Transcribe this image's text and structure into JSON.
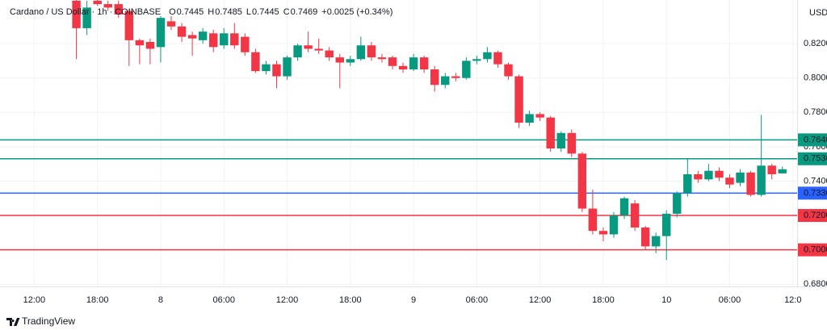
{
  "chart_data": {
    "type": "candlestick",
    "title": "Cardano / US Dollar · 1h · COINBASE",
    "ohlc_legend": [
      {
        "label": "O",
        "value": 0.7445
      },
      {
        "label": "H",
        "value": 0.7485
      },
      {
        "label": "L",
        "value": 0.7445
      },
      {
        "label": "C",
        "value": 0.7469
      }
    ],
    "change": "+0.0025 (+0.34%)",
    "currency": "USD",
    "brand": "TradingView",
    "up_color": "#089981",
    "down_color": "#f23645",
    "xlim": [
      -3.25,
      72.4
    ],
    "xticks": [
      {
        "value": 0,
        "label": "12:00"
      },
      {
        "value": 6,
        "label": "18:00"
      },
      {
        "value": 12,
        "label": "8"
      },
      {
        "value": 18,
        "label": "06:00"
      },
      {
        "value": 24,
        "label": "12:00"
      },
      {
        "value": 30,
        "label": "18:00"
      },
      {
        "value": 36,
        "label": "9"
      },
      {
        "value": 42,
        "label": "06:00"
      },
      {
        "value": 48,
        "label": "12:00"
      },
      {
        "value": 54,
        "label": "18:00"
      },
      {
        "value": 60,
        "label": "10"
      },
      {
        "value": 66,
        "label": "06:00"
      },
      {
        "value": 72,
        "label": "12:0"
      }
    ],
    "ylim": [
      0.6787,
      0.8454
    ],
    "yticks": [
      {
        "value": 0.82,
        "label": "0.8200"
      },
      {
        "value": 0.8,
        "label": "0.8000"
      },
      {
        "value": 0.78,
        "label": "0.7800"
      },
      {
        "value": 0.76,
        "label": "0.7600"
      },
      {
        "value": 0.74,
        "label": "0.7400"
      },
      {
        "value": 0.68,
        "label": "0.6800"
      }
    ],
    "levels": [
      {
        "value": 0.764,
        "label": "0.7640",
        "color": "#089981"
      },
      {
        "value": 0.753,
        "label": "0.7530",
        "color": "#089981"
      },
      {
        "value": 0.733,
        "label": "0.7330",
        "color": "#2962ff"
      },
      {
        "value": 0.72,
        "label": "0.7200",
        "color": "#f23645"
      },
      {
        "value": 0.7,
        "label": "0.7000",
        "color": "#f23645"
      }
    ],
    "x": [
      4,
      5,
      6,
      7,
      8,
      9,
      10,
      11,
      12,
      13,
      14,
      15,
      16,
      17,
      18,
      19,
      20,
      21,
      22,
      23,
      24,
      25,
      26,
      27,
      28,
      29,
      30,
      31,
      32,
      33,
      34,
      35,
      36,
      37,
      38,
      39,
      40,
      41,
      42,
      43,
      44,
      45,
      46,
      47,
      48,
      49,
      50,
      51,
      52,
      53,
      54,
      55,
      56,
      57,
      58,
      59,
      60,
      61,
      62,
      63,
      64,
      65,
      66,
      67,
      68,
      69,
      70,
      71
    ],
    "open": [
      0.845,
      0.829,
      0.845,
      0.843,
      0.843,
      0.839,
      0.822,
      0.821,
      0.818,
      0.833,
      0.83,
      0.825,
      0.822,
      0.826,
      0.819,
      0.826,
      0.824,
      0.815,
      0.804,
      0.808,
      0.801,
      0.812,
      0.819,
      0.817,
      0.816,
      0.812,
      0.809,
      0.811,
      0.819,
      0.812,
      0.812,
      0.807,
      0.805,
      0.812,
      0.805,
      0.796,
      0.801,
      0.8,
      0.81,
      0.811,
      0.815,
      0.808,
      0.801,
      0.774,
      0.779,
      0.777,
      0.759,
      0.768,
      0.756,
      0.724,
      0.711,
      0.709,
      0.72,
      0.727,
      0.713,
      0.702,
      0.708,
      0.721,
      0.733,
      0.744,
      0.741,
      0.746,
      0.742,
      0.739,
      0.745,
      0.732,
      0.749,
      0.7445
    ],
    "high": [
      0.848,
      0.845,
      0.848,
      0.845,
      0.845,
      0.84,
      0.823,
      0.823,
      0.836,
      0.836,
      0.832,
      0.827,
      0.829,
      0.828,
      0.829,
      0.832,
      0.826,
      0.817,
      0.81,
      0.81,
      0.813,
      0.82,
      0.827,
      0.823,
      0.818,
      0.814,
      0.813,
      0.824,
      0.821,
      0.814,
      0.813,
      0.809,
      0.814,
      0.813,
      0.807,
      0.803,
      0.803,
      0.812,
      0.813,
      0.818,
      0.816,
      0.809,
      0.802,
      0.781,
      0.78,
      0.778,
      0.769,
      0.77,
      0.757,
      0.735,
      0.713,
      0.722,
      0.731,
      0.729,
      0.714,
      0.71,
      0.723,
      0.734,
      0.753,
      0.746,
      0.75,
      0.748,
      0.744,
      0.747,
      0.746,
      0.7785,
      0.75,
      0.7485
    ],
    "low": [
      0.811,
      0.825,
      0.842,
      0.839,
      0.835,
      0.807,
      0.808,
      0.808,
      0.809,
      0.828,
      0.821,
      0.813,
      0.82,
      0.815,
      0.817,
      0.817,
      0.813,
      0.803,
      0.802,
      0.794,
      0.799,
      0.81,
      0.815,
      0.814,
      0.81,
      0.794,
      0.807,
      0.81,
      0.81,
      0.809,
      0.805,
      0.803,
      0.804,
      0.803,
      0.792,
      0.794,
      0.798,
      0.799,
      0.808,
      0.809,
      0.806,
      0.799,
      0.771,
      0.772,
      0.775,
      0.757,
      0.757,
      0.754,
      0.722,
      0.709,
      0.705,
      0.707,
      0.718,
      0.711,
      0.7,
      0.698,
      0.694,
      0.719,
      0.731,
      0.739,
      0.74,
      0.74,
      0.736,
      0.737,
      0.731,
      0.731,
      0.741,
      0.7445
    ],
    "close": [
      0.829,
      0.841,
      0.843,
      0.841,
      0.837,
      0.822,
      0.819,
      0.817,
      0.835,
      0.83,
      0.824,
      0.823,
      0.827,
      0.818,
      0.826,
      0.819,
      0.815,
      0.804,
      0.808,
      0.801,
      0.812,
      0.819,
      0.817,
      0.816,
      0.812,
      0.809,
      0.811,
      0.819,
      0.812,
      0.811,
      0.807,
      0.805,
      0.812,
      0.805,
      0.796,
      0.801,
      0.8,
      0.81,
      0.811,
      0.815,
      0.808,
      0.801,
      0.774,
      0.779,
      0.777,
      0.759,
      0.768,
      0.756,
      0.724,
      0.711,
      0.709,
      0.72,
      0.73,
      0.713,
      0.702,
      0.708,
      0.721,
      0.733,
      0.744,
      0.741,
      0.746,
      0.742,
      0.738,
      0.745,
      0.732,
      0.749,
      0.744,
      0.7469
    ]
  }
}
